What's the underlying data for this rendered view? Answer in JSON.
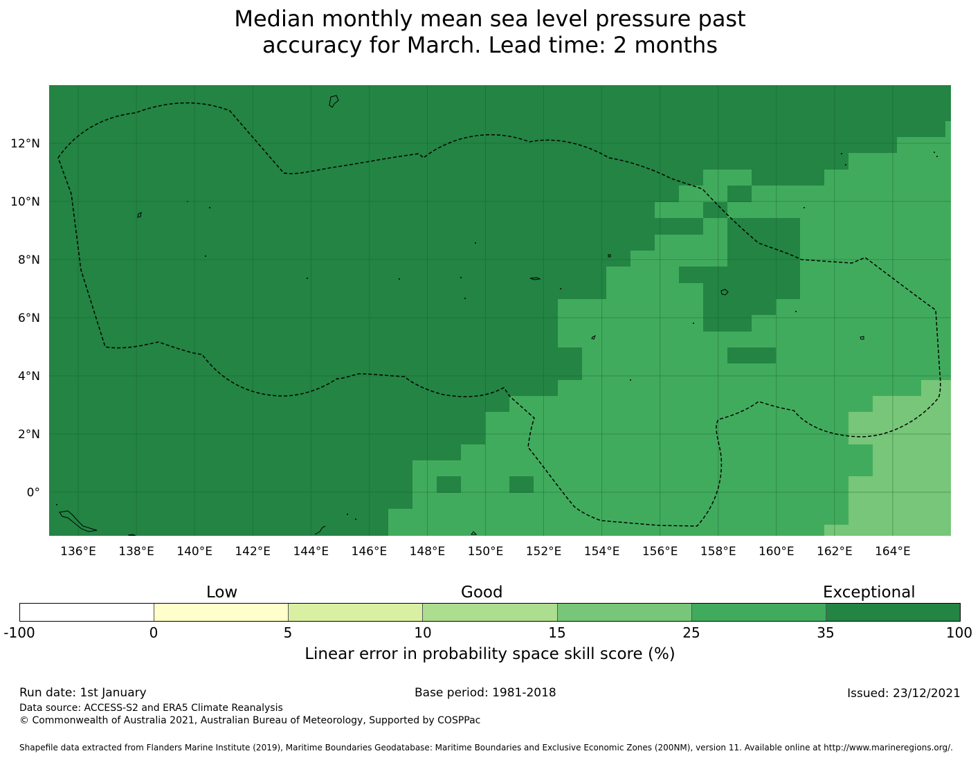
{
  "title": {
    "line1": "Median monthly mean sea level pressure past",
    "line2": "accuracy for March. Lead time: 2 months"
  },
  "map": {
    "lon_range": [
      135,
      166
    ],
    "lat_range": [
      -1.5,
      14
    ],
    "lon_ticks": [
      "136°E",
      "138°E",
      "140°E",
      "142°E",
      "144°E",
      "146°E",
      "148°E",
      "150°E",
      "152°E",
      "154°E",
      "156°E",
      "158°E",
      "160°E",
      "162°E",
      "164°E"
    ],
    "lat_ticks": [
      "12°N",
      "10°N",
      "8°N",
      "6°N",
      "4°N",
      "2°N",
      "0°"
    ],
    "base_category_color": "#238443",
    "region_colors": {
      "25-35": "#41ab5d",
      "15-25": "#78c679"
    },
    "boundary": "dashed black EEZ outline",
    "coastlines": "thin black island outlines"
  },
  "colorbar": {
    "category_labels": [
      "Low",
      "Good",
      "Exceptional"
    ],
    "bins": [
      {
        "from": "-100",
        "to": "0",
        "color": "#ffffff"
      },
      {
        "from": "0",
        "to": "5",
        "color": "#ffffcc"
      },
      {
        "from": "5",
        "to": "10",
        "color": "#d9f0a3"
      },
      {
        "from": "10",
        "to": "15",
        "color": "#addd8e"
      },
      {
        "from": "15",
        "to": "25",
        "color": "#78c679"
      },
      {
        "from": "25",
        "to": "35",
        "color": "#41ab5d"
      },
      {
        "from": "35",
        "to": "100",
        "color": "#238443"
      }
    ],
    "ticks": [
      "-100",
      "0",
      "5",
      "10",
      "15",
      "25",
      "35",
      "100"
    ],
    "title": "Linear error in probability space skill score (%)"
  },
  "footer": {
    "run_date": "Run date: 1st January",
    "base_period": "Base period: 1981-2018",
    "issued": "Issued: 23/12/2021",
    "data_source": "Data source: ACCESS-S2 and ERA5 Climate Reanalysis",
    "copyright": "© Commonwealth of Australia 2021, Australian Bureau of Meteorology, Supported by COSPPac",
    "shapefile": "Shapefile data extracted from Flanders Marine Institute (2019), Maritime Boundaries Geodatabase: Maritime Boundaries and Exclusive Economic Zones (200NM), version 11. Available online at http://www.marineregions.org/."
  }
}
